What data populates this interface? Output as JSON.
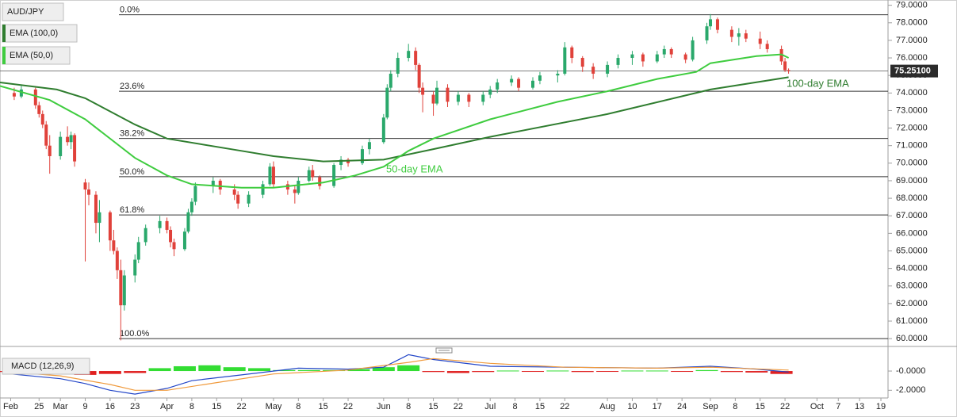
{
  "chart_data": [
    {
      "type": "candlestick",
      "title": "AUD/JPY",
      "candles": {
        "x": [
          "Feb 18",
          "Feb 20",
          "Feb 24",
          "Feb 25",
          "Feb 26",
          "Feb 27",
          "Feb 28",
          "Mar 2",
          "Mar 4",
          "Mar 5",
          "Mar 6",
          "Mar 9",
          "Mar 10",
          "Mar 12",
          "Mar 13",
          "Mar 16",
          "Mar 17",
          "Mar 18",
          "Mar 19",
          "Mar 20",
          "Mar 23",
          "Mar 24",
          "Mar 26",
          "Mar 30",
          "Apr 1",
          "Apr 2",
          "Apr 3",
          "Apr 6",
          "Apr 7",
          "Apr 8",
          "Apr 9",
          "Apr 14",
          "Apr 16",
          "Apr 20",
          "Apr 21",
          "Apr 24",
          "Apr 28",
          "Apr 30",
          "May 1",
          "May 5",
          "May 7",
          "May 8",
          "May 11",
          "May 12",
          "May 14",
          "May 18",
          "May 20",
          "May 22",
          "May 26",
          "May 28",
          "Jun 1",
          "Jun 2",
          "Jun 3",
          "Jun 5",
          "Jun 8",
          "Jun 10",
          "Jun 11",
          "Jun 12",
          "Jun 15",
          "Jun 16",
          "Jun 19",
          "Jun 22",
          "Jun 25",
          "Jun 29",
          "Jul 1",
          "Jul 3",
          "Jul 7",
          "Jul 9",
          "Jul 13",
          "Jul 15",
          "Jul 20",
          "Jul 22",
          "Jul 24",
          "Jul 27",
          "Jul 30",
          "Aug 3",
          "Aug 6",
          "Aug 10",
          "Aug 13",
          "Aug 17",
          "Aug 19",
          "Aug 21",
          "Aug 25",
          "Aug 27",
          "Aug 31",
          "Sep 1",
          "Sep 3",
          "Sep 7",
          "Sep 9",
          "Sep 11",
          "Sep 15",
          "Sep 17",
          "Sep 21",
          "Sep 22",
          "Sep 23"
        ],
        "open": [
          74.0,
          73.8,
          74.2,
          73.3,
          72.8,
          72.2,
          71.0,
          70.4,
          71.5,
          71.2,
          71.6,
          68.9,
          68.5,
          68.2,
          66.6,
          67.2,
          65.6,
          65.0,
          63.9,
          61.9,
          63.6,
          64.5,
          65.5,
          66.3,
          66.7,
          66.2,
          65.5,
          65.1,
          66.1,
          67.2,
          67.8,
          68.7,
          69.0,
          68.5,
          68.2,
          67.7,
          68.2,
          68.8,
          69.8,
          68.8,
          68.5,
          68.3,
          69.0,
          69.6,
          69.2,
          68.7,
          69.9,
          70.2,
          70.0,
          70.8,
          71.2,
          72.6,
          74.3,
          75.1,
          76.0,
          76.4,
          75.6,
          74.3,
          73.9,
          73.4,
          74.3,
          73.5,
          73.9,
          73.5,
          73.9,
          74.2,
          74.6,
          74.8,
          74.3,
          74.7,
          75.0,
          75.1,
          76.6,
          76.0,
          75.5,
          75.1,
          75.6,
          76.0,
          76.2,
          75.8,
          76.2,
          76.5,
          76.2,
          75.9,
          77.0,
          77.8,
          78.2,
          77.6,
          77.2,
          77.4,
          77.1,
          76.8,
          76.5,
          75.8,
          75.3
        ],
        "high": [
          74.3,
          74.4,
          74.3,
          73.5,
          73.0,
          72.4,
          71.6,
          71.8,
          72.1,
          71.8,
          71.7,
          69.1,
          68.9,
          68.4,
          67.9,
          67.3,
          66.2,
          65.2,
          64.5,
          63.9,
          64.8,
          65.8,
          66.5,
          67.0,
          66.9,
          66.4,
          65.7,
          66.3,
          67.4,
          68.0,
          68.9,
          69.2,
          69.1,
          68.8,
          68.4,
          68.4,
          69.0,
          70.0,
          70.1,
          69.0,
          68.7,
          69.2,
          69.8,
          69.9,
          69.3,
          70.0,
          70.4,
          70.3,
          71.0,
          71.4,
          72.8,
          74.5,
          75.3,
          76.3,
          76.8,
          76.6,
          75.7,
          74.6,
          74.1,
          74.7,
          74.5,
          74.1,
          74.0,
          74.1,
          74.4,
          74.8,
          75.0,
          74.9,
          74.9,
          75.2,
          75.3,
          76.9,
          76.7,
          76.1,
          75.7,
          75.8,
          76.2,
          76.4,
          76.3,
          76.4,
          76.7,
          76.6,
          76.3,
          77.2,
          78.0,
          78.5,
          78.3,
          77.8,
          77.7,
          77.6,
          77.5,
          77.0,
          76.7,
          76.0,
          75.4
        ],
        "low": [
          73.6,
          73.7,
          73.1,
          72.6,
          72.0,
          70.8,
          69.4,
          70.2,
          71.0,
          70.8,
          69.8,
          64.4,
          67.6,
          66.0,
          65.5,
          65.0,
          64.8,
          63.4,
          59.9,
          61.6,
          63.2,
          64.3,
          65.3,
          66.0,
          66.0,
          65.2,
          64.7,
          65.0,
          66.0,
          67.0,
          67.6,
          68.3,
          68.2,
          67.9,
          67.4,
          67.5,
          68.0,
          68.7,
          68.6,
          68.2,
          67.7,
          68.2,
          68.9,
          69.0,
          68.5,
          68.6,
          69.6,
          69.8,
          69.9,
          70.5,
          71.1,
          72.5,
          74.1,
          74.9,
          75.8,
          75.3,
          74.0,
          72.9,
          72.7,
          73.3,
          73.2,
          73.3,
          73.2,
          73.3,
          73.7,
          74.0,
          74.4,
          74.1,
          74.2,
          74.5,
          74.6,
          75.0,
          75.7,
          75.2,
          74.8,
          74.9,
          75.4,
          75.6,
          75.5,
          75.7,
          76.0,
          76.0,
          75.7,
          75.8,
          76.8,
          77.6,
          77.4,
          76.9,
          76.7,
          76.9,
          76.5,
          76.3,
          75.6,
          75.2,
          75.1
        ],
        "close": [
          73.8,
          74.2,
          73.3,
          72.8,
          72.2,
          71.0,
          70.4,
          71.5,
          71.2,
          71.6,
          70.1,
          68.5,
          68.2,
          66.6,
          67.2,
          65.6,
          65.0,
          63.9,
          61.9,
          63.6,
          64.5,
          65.5,
          66.3,
          66.7,
          66.2,
          65.5,
          65.1,
          66.1,
          67.2,
          67.8,
          68.7,
          69.0,
          68.5,
          68.2,
          67.7,
          68.2,
          68.8,
          69.8,
          68.8,
          68.5,
          68.3,
          69.0,
          69.6,
          69.2,
          68.7,
          69.9,
          70.2,
          70.0,
          70.8,
          71.2,
          72.6,
          74.3,
          75.1,
          76.0,
          76.4,
          75.6,
          74.3,
          73.9,
          73.4,
          74.3,
          73.5,
          73.9,
          73.5,
          73.9,
          74.2,
          74.6,
          74.8,
          74.3,
          74.7,
          75.0,
          75.1,
          76.6,
          76.0,
          75.5,
          75.1,
          75.6,
          76.0,
          76.2,
          75.8,
          76.2,
          76.5,
          76.2,
          75.9,
          77.0,
          77.8,
          78.2,
          77.6,
          77.2,
          77.4,
          77.1,
          76.8,
          76.5,
          75.8,
          75.3,
          75.25
        ],
        "up_color": "#2aa86b",
        "down_color": "#e0413a"
      },
      "series": [
        {
          "name": "EMA (100,0)",
          "color": "#2f7d2f",
          "x": [
            "Feb 14",
            "Mar 1",
            "Mar 9",
            "Mar 23",
            "Apr 1",
            "Apr 22",
            "May 1",
            "May 15",
            "Jun 1",
            "Jun 15",
            "Jul 1",
            "Aug 3",
            "Sep 1",
            "Sep 23"
          ],
          "values": [
            74.6,
            74.2,
            73.7,
            72.2,
            71.4,
            70.7,
            70.4,
            70.1,
            70.2,
            70.8,
            71.5,
            72.8,
            74.2,
            74.9
          ]
        },
        {
          "name": "EMA (50,0)",
          "color": "#3fcc3f",
          "x": [
            "Feb 14",
            "Feb 28",
            "Mar 9",
            "Mar 23",
            "Apr 1",
            "Apr 8",
            "Apr 22",
            "May 1",
            "May 15",
            "May 24",
            "Jun 1",
            "Jun 8",
            "Jun 15",
            "Jul 1",
            "Jul 20",
            "Aug 3",
            "Aug 17",
            "Aug 28",
            "Sep 1",
            "Sep 14",
            "Sep 21",
            "Sep 23"
          ],
          "values": [
            74.4,
            73.6,
            72.5,
            70.3,
            69.3,
            68.8,
            68.6,
            68.6,
            68.9,
            69.3,
            69.8,
            70.7,
            71.4,
            72.5,
            73.5,
            74.1,
            74.8,
            75.2,
            75.7,
            76.1,
            76.2,
            76.0
          ]
        }
      ],
      "annotations": [
        "50-day EMA",
        "100-day EMA"
      ],
      "fib_levels": [
        {
          "value": 78.46,
          "label": "0.0%"
        },
        {
          "value": 74.1,
          "label": "23.6%"
        },
        {
          "value": 71.41,
          "label": "38.2%"
        },
        {
          "value": 69.23,
          "label": "50.0%"
        },
        {
          "value": 67.05,
          "label": "61.8%"
        },
        {
          "value": 60.0,
          "label": "100.0%"
        }
      ],
      "last_price": {
        "value": 75.251,
        "label": "75.25100"
      },
      "xlim": [
        "Feb 14",
        "Oct 21"
      ],
      "ylim": [
        59.6,
        79.3
      ],
      "yticks": [
        {
          "value": 60,
          "label": "60.0000"
        },
        {
          "value": 61,
          "label": "61.0000"
        },
        {
          "value": 62,
          "label": "62.0000"
        },
        {
          "value": 63,
          "label": "63.0000"
        },
        {
          "value": 64,
          "label": "64.0000"
        },
        {
          "value": 65,
          "label": "65.0000"
        },
        {
          "value": 66,
          "label": "66.0000"
        },
        {
          "value": 67,
          "label": "67.0000"
        },
        {
          "value": 68,
          "label": "68.0000"
        },
        {
          "value": 69,
          "label": "69.0000"
        },
        {
          "value": 70,
          "label": "70.0000"
        },
        {
          "value": 71,
          "label": "71.0000"
        },
        {
          "value": 72,
          "label": "72.0000"
        },
        {
          "value": 73,
          "label": "73.0000"
        },
        {
          "value": 74,
          "label": "74.0000"
        },
        {
          "value": 75,
          "label": "75.0000"
        },
        {
          "value": 76,
          "label": "76.0000"
        },
        {
          "value": 77,
          "label": "77.0000"
        },
        {
          "value": 78,
          "label": "78.0000"
        },
        {
          "value": 79,
          "label": "79.0000"
        }
      ],
      "xticks": [
        {
          "value": "Feb 17",
          "label": "Feb"
        },
        {
          "value": "Feb 25",
          "label": "25"
        },
        {
          "value": "Mar 2",
          "label": "Mar"
        },
        {
          "value": "Mar 9",
          "label": "9"
        },
        {
          "value": "Mar 16",
          "label": "16"
        },
        {
          "value": "Mar 23",
          "label": "23"
        },
        {
          "value": "Apr 1",
          "label": "Apr"
        },
        {
          "value": "Apr 8",
          "label": "8"
        },
        {
          "value": "Apr 15",
          "label": "15"
        },
        {
          "value": "Apr 22",
          "label": "22"
        },
        {
          "value": "May 1",
          "label": "May"
        },
        {
          "value": "May 8",
          "label": "8"
        },
        {
          "value": "May 15",
          "label": "15"
        },
        {
          "value": "May 22",
          "label": "22"
        },
        {
          "value": "Jun 1",
          "label": "Jun"
        },
        {
          "value": "Jun 8",
          "label": "8"
        },
        {
          "value": "Jun 15",
          "label": "15"
        },
        {
          "value": "Jun 22",
          "label": "22"
        },
        {
          "value": "Jul 1",
          "label": "Jul"
        },
        {
          "value": "Jul 8",
          "label": "8"
        },
        {
          "value": "Jul 15",
          "label": "15"
        },
        {
          "value": "Jul 22",
          "label": "22"
        },
        {
          "value": "Aug 3",
          "label": "Aug"
        },
        {
          "value": "Aug 10",
          "label": "10"
        },
        {
          "value": "Aug 17",
          "label": "17"
        },
        {
          "value": "Aug 24",
          "label": "24"
        },
        {
          "value": "Sep 1",
          "label": "Sep"
        },
        {
          "value": "Sep 8",
          "label": "8"
        },
        {
          "value": "Sep 15",
          "label": "15"
        },
        {
          "value": "Sep 22",
          "label": "22"
        },
        {
          "value": "Oct 1",
          "label": "Oct"
        },
        {
          "value": "Oct 7",
          "label": "7"
        },
        {
          "value": "Oct 13",
          "label": "13"
        },
        {
          "value": "Oct 19",
          "label": "19"
        }
      ]
    },
    {
      "type": "macd",
      "title": "MACD (12,26,9)",
      "histogram": {
        "x": [
          "Feb 17",
          "Feb 24",
          "Mar 2",
          "Mar 9",
          "Mar 16",
          "Mar 23",
          "Mar 30",
          "Apr 6",
          "Apr 13",
          "Apr 20",
          "Apr 27",
          "May 4",
          "May 11",
          "May 18",
          "May 25",
          "Jun 1",
          "Jun 8",
          "Jun 15",
          "Jun 22",
          "Jun 29",
          "Jul 6",
          "Jul 13",
          "Jul 20",
          "Jul 27",
          "Aug 3",
          "Aug 10",
          "Aug 17",
          "Aug 24",
          "Aug 31",
          "Sep 7",
          "Sep 14",
          "Sep 21"
        ],
        "values": [
          -0.1,
          -0.2,
          -0.3,
          -0.4,
          -0.3,
          -0.2,
          0.3,
          0.5,
          0.6,
          0.4,
          0.3,
          0.1,
          0.1,
          0.1,
          0.2,
          0.4,
          0.6,
          -0.1,
          -0.2,
          -0.1,
          0.05,
          -0.05,
          0.05,
          -0.1,
          -0.05,
          0.05,
          0.05,
          -0.05,
          0.1,
          -0.1,
          -0.15,
          -0.3
        ],
        "up_color": "#33dd33",
        "down_color": "#e02020"
      },
      "series": [
        {
          "name": "MACD",
          "color": "#2346c8",
          "x": [
            "Feb 17",
            "Mar 2",
            "Mar 9",
            "Mar 16",
            "Mar 23",
            "Apr 1",
            "Apr 8",
            "Apr 22",
            "May 8",
            "May 22",
            "Jun 1",
            "Jun 8",
            "Jun 15",
            "Jul 1",
            "Jul 22",
            "Aug 17",
            "Sep 1",
            "Sep 14",
            "Sep 23"
          ],
          "values": [
            -0.3,
            -0.8,
            -1.3,
            -2.0,
            -2.4,
            -1.8,
            -1.0,
            -0.4,
            0.3,
            0.2,
            0.4,
            1.7,
            1.2,
            0.5,
            0.4,
            0.3,
            0.5,
            0.2,
            -0.1
          ]
        },
        {
          "name": "Signal",
          "color": "#f09a3c",
          "x": [
            "Feb 17",
            "Mar 2",
            "Mar 16",
            "Mar 23",
            "Apr 1",
            "Apr 15",
            "May 1",
            "May 22",
            "Jun 8",
            "Jun 15",
            "Jul 1",
            "Jul 22",
            "Aug 17",
            "Sep 1",
            "Sep 23"
          ],
          "values": [
            -0.1,
            -0.5,
            -1.4,
            -2.0,
            -2.0,
            -1.2,
            -0.3,
            0.1,
            0.9,
            1.3,
            0.8,
            0.4,
            0.3,
            0.4,
            0.1
          ]
        }
      ],
      "ylim": [
        -2.8,
        1.9
      ],
      "yticks": [
        {
          "value": 0,
          "label": "-0.0000"
        },
        {
          "value": -2,
          "label": "-2.0000"
        }
      ]
    }
  ]
}
